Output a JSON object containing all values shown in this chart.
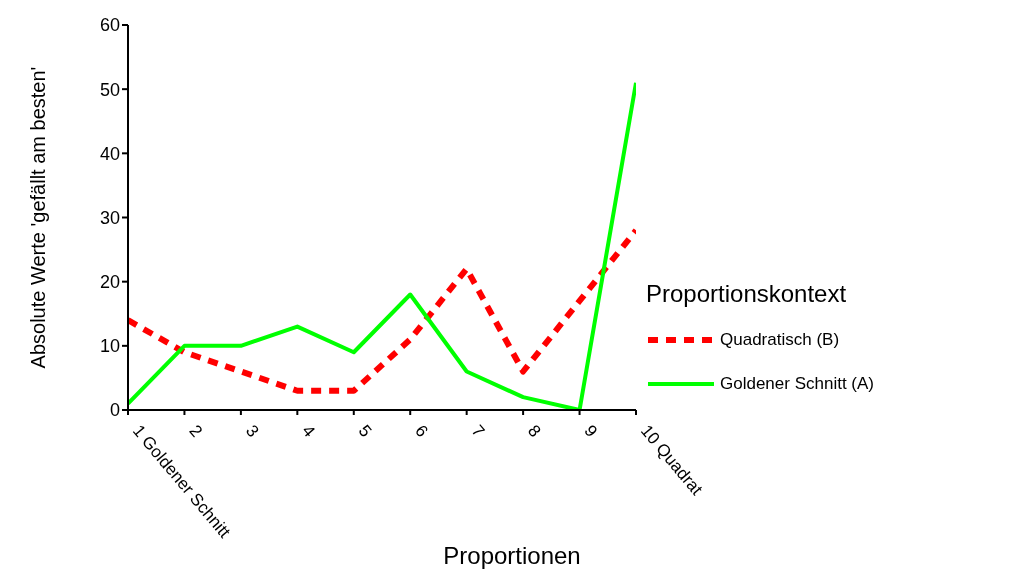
{
  "chart_data": {
    "type": "line",
    "xlabel": "Proportionen",
    "ylabel": "Absolute Werte 'gefällt am besten'",
    "legend_title": "Proportionskontext",
    "categories": [
      "1 Goldener Schnitt",
      "2",
      "3",
      "4",
      "5",
      "6",
      "7",
      "8",
      "9",
      "10 Quadrat"
    ],
    "series": [
      {
        "name": "Quadratisch (B)",
        "color": "#ff0000",
        "line_style": "dashed",
        "values": [
          14,
          9,
          6,
          3,
          3,
          11,
          22,
          6,
          17,
          28
        ]
      },
      {
        "name": "Goldener Schnitt (A)",
        "color": "#00ff00",
        "line_style": "solid",
        "values": [
          1,
          10,
          10,
          13,
          9,
          18,
          6,
          2,
          0,
          51
        ]
      }
    ],
    "ylim": [
      0,
      60
    ],
    "yticks": [
      0,
      10,
      20,
      30,
      40,
      50,
      60
    ],
    "grid": false,
    "legend": "right",
    "marker": "none"
  }
}
